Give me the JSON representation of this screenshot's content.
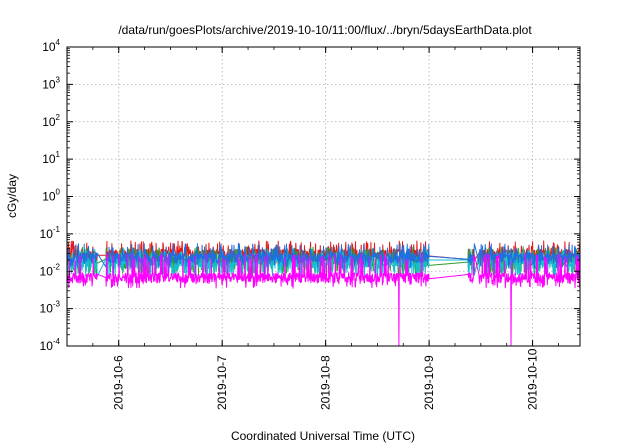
{
  "chart_data": {
    "type": "line",
    "title": "/data/run/goesPlots/archive/2019-10-10/11:00/flux/../bryn/5daysEarthData.plot",
    "xlabel": "Coordinated Universal Time (UTC)",
    "ylabel": "cGy/day",
    "yscale": "log",
    "ylim": [
      0.0001,
      10000
    ],
    "xlim": [
      "2019-10-05T12:00",
      "2019-10-10T11:00"
    ],
    "x_ticks": [
      "2019-10-6",
      "2019-10-7",
      "2019-10-8",
      "2019-10-9",
      "2019-10-10"
    ],
    "y_ticks": [
      {
        "base": "10",
        "exp": "-4",
        "value": 0.0001
      },
      {
        "base": "10",
        "exp": "-3",
        "value": 0.001
      },
      {
        "base": "10",
        "exp": "-2",
        "value": 0.01
      },
      {
        "base": "10",
        "exp": "-1",
        "value": 0.1
      },
      {
        "base": "10",
        "exp": "0",
        "value": 1
      },
      {
        "base": "10",
        "exp": "1",
        "value": 10
      },
      {
        "base": "10",
        "exp": "2",
        "value": 100
      },
      {
        "base": "10",
        "exp": "3",
        "value": 1000
      },
      {
        "base": "10",
        "exp": "4",
        "value": 10000
      }
    ],
    "grid": true,
    "gaps": [
      {
        "from": "2019-10-05T19:00",
        "to": "2019-10-05T21:00"
      },
      {
        "from": "2019-10-09T00:00",
        "to": "2019-10-09T09:00"
      },
      {
        "from": "2019-10-09T10:30",
        "to": "2019-10-09T11:30"
      }
    ],
    "dips": [
      {
        "series": 4,
        "x": "2019-10-08T17:00",
        "y": 0.0001
      },
      {
        "series": 4,
        "x": "2019-10-09T19:00",
        "y": 0.0001
      }
    ],
    "series": [
      {
        "color": "#e41a1c",
        "base": 0.03,
        "low": 0.014,
        "high": 0.065
      },
      {
        "color": "#2ca02c",
        "base": 0.02,
        "low": 0.008,
        "high": 0.045
      },
      {
        "color": "#17becf",
        "base": 0.017,
        "low": 0.007,
        "high": 0.04
      },
      {
        "color": "#1f6fe0",
        "base": 0.024,
        "low": 0.012,
        "high": 0.055
      },
      {
        "color": "#ff00ff",
        "base": 0.007,
        "low": 0.0035,
        "high": 0.03
      }
    ]
  }
}
